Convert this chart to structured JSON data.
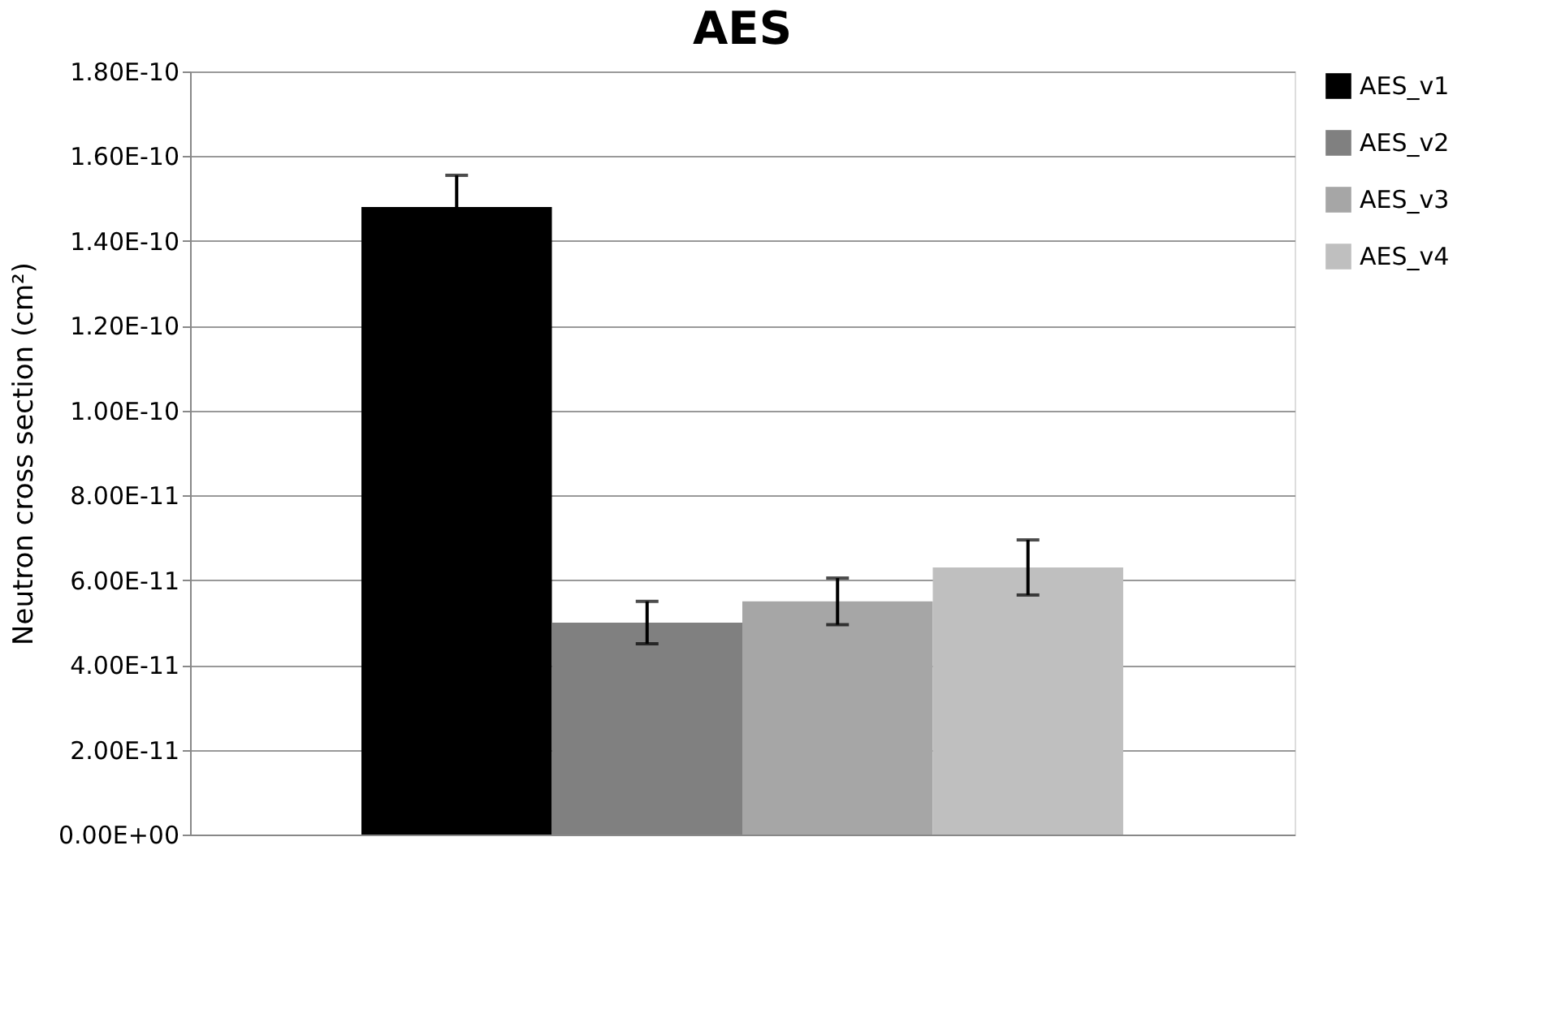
{
  "chart_data": {
    "type": "bar",
    "title": "AES",
    "ylabel": "Neutron cross section (cm²)",
    "categories": [
      null
    ],
    "series": [
      {
        "name": "AES_v1",
        "color": "#000000",
        "values": [
          1.48e-10
        ],
        "errors": [
          7.5e-12
        ]
      },
      {
        "name": "AES_v2",
        "color": "#808080",
        "values": [
          5e-11
        ],
        "errors": [
          5e-12
        ]
      },
      {
        "name": "AES_v3",
        "color": "#a6a6a6",
        "values": [
          5.5e-11
        ],
        "errors": [
          5.5e-12
        ]
      },
      {
        "name": "AES_v4",
        "color": "#bfbfbf",
        "values": [
          6.3e-11
        ],
        "errors": [
          6.5e-12
        ]
      }
    ],
    "ylim": [
      0,
      1.8e-10
    ],
    "yticks": [
      {
        "value": 0,
        "label": "0.00E+00"
      },
      {
        "value": 2e-11,
        "label": "2.00E-11"
      },
      {
        "value": 4e-11,
        "label": "4.00E-11"
      },
      {
        "value": 6e-11,
        "label": "6.00E-11"
      },
      {
        "value": 8e-11,
        "label": "8.00E-11"
      },
      {
        "value": 1e-10,
        "label": "1.00E-10"
      },
      {
        "value": 1.2e-10,
        "label": "1.20E-10"
      },
      {
        "value": 1.4e-10,
        "label": "1.40E-10"
      },
      {
        "value": 1.6e-10,
        "label": "1.60E-10"
      },
      {
        "value": 1.8e-10,
        "label": "1.80E-10"
      }
    ],
    "grid": "y",
    "legend": "right"
  }
}
